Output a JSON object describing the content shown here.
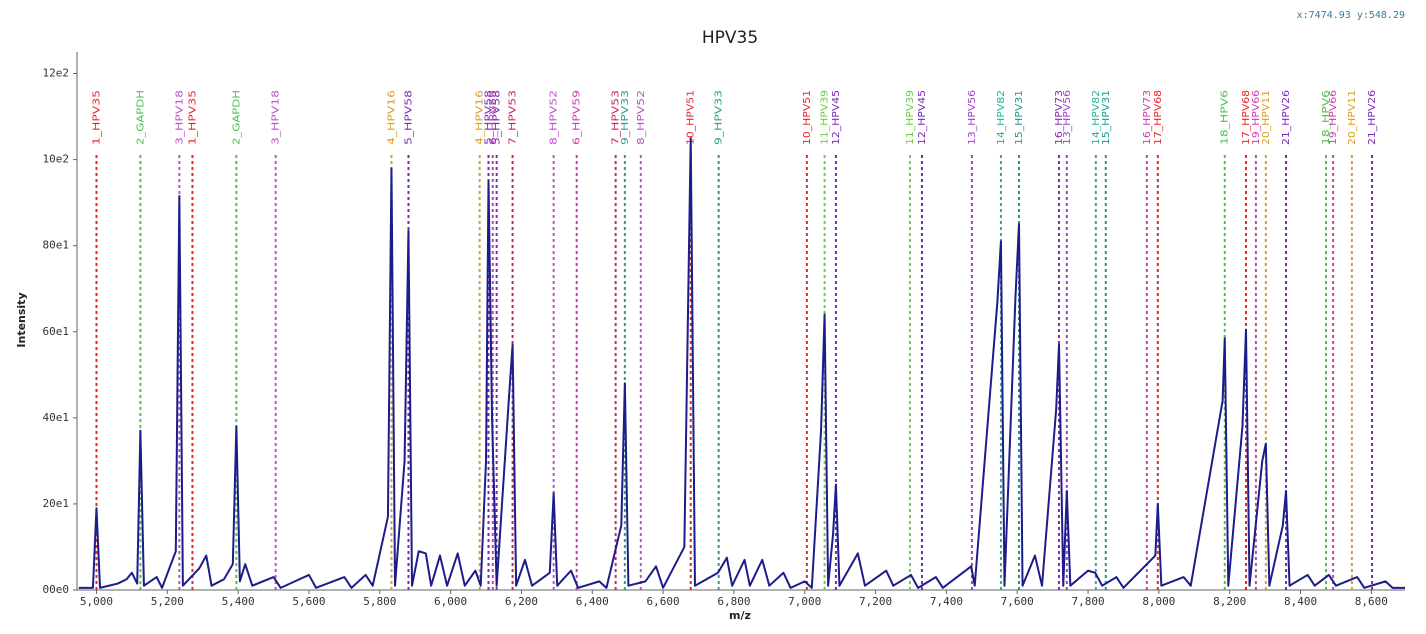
{
  "chart_data": {
    "type": "line",
    "title": "HPV35",
    "coordinates": "x:7474.93 y:548.29",
    "x_label": "m/z",
    "y_label": "Intensity",
    "xlim": [
      4945,
      8695
    ],
    "ylim": [
      0,
      1250
    ],
    "xticks": [
      {
        "value": 5000,
        "label": "5,000"
      },
      {
        "value": 5200,
        "label": "5,200"
      },
      {
        "value": 5400,
        "label": "5,400"
      },
      {
        "value": 5600,
        "label": "5,600"
      },
      {
        "value": 5800,
        "label": "5,800"
      },
      {
        "value": 6000,
        "label": "6,000"
      },
      {
        "value": 6200,
        "label": "6,200"
      },
      {
        "value": 6400,
        "label": "6,400"
      },
      {
        "value": 6600,
        "label": "6,600"
      },
      {
        "value": 6800,
        "label": "6,800"
      },
      {
        "value": 7000,
        "label": "7,000"
      },
      {
        "value": 7200,
        "label": "7,200"
      },
      {
        "value": 7400,
        "label": "7,400"
      },
      {
        "value": 7600,
        "label": "7,600"
      },
      {
        "value": 7800,
        "label": "7,800"
      },
      {
        "value": 8000,
        "label": "8,000"
      },
      {
        "value": 8200,
        "label": "8,200"
      },
      {
        "value": 8400,
        "label": "8,400"
      },
      {
        "value": 8600,
        "label": "8,600"
      }
    ],
    "yticks": [
      {
        "value": 0,
        "label": "00e0"
      },
      {
        "value": 200,
        "label": "20e1"
      },
      {
        "value": 400,
        "label": "40e1"
      },
      {
        "value": 600,
        "label": "60e1"
      },
      {
        "value": 800,
        "label": "80e1"
      },
      {
        "value": 1000,
        "label": "10e2"
      },
      {
        "value": 1200,
        "label": "12e2"
      }
    ],
    "series": [
      {
        "name": "spectrum",
        "color": "#1c1c8a",
        "x": [
          4950,
          4990,
          5000,
          5010,
          5060,
          5085,
          5100,
          5115,
          5124,
          5134,
          5170,
          5185,
          5224,
          5234,
          5244,
          5290,
          5310,
          5325,
          5360,
          5385,
          5395,
          5405,
          5420,
          5440,
          5500,
          5520,
          5560,
          5600,
          5620,
          5700,
          5720,
          5760,
          5780,
          5823,
          5833,
          5843,
          5870,
          5881,
          5891,
          5910,
          5930,
          5945,
          5970,
          5990,
          6020,
          6040,
          6070,
          6085,
          6100,
          6107,
          6117,
          6130,
          6165,
          6175,
          6185,
          6210,
          6230,
          6280,
          6291,
          6301,
          6340,
          6360,
          6420,
          6440,
          6482,
          6492,
          6502,
          6550,
          6580,
          6600,
          6660,
          6678,
          6690,
          6755,
          6780,
          6795,
          6830,
          6845,
          6880,
          6900,
          6940,
          6960,
          7000,
          7020,
          7046,
          7056,
          7066,
          7080,
          7088,
          7098,
          7150,
          7170,
          7230,
          7250,
          7300,
          7320,
          7370,
          7390,
          7470,
          7480,
          7544,
          7554,
          7564,
          7595,
          7605,
          7615,
          7650,
          7670,
          7710,
          7718,
          7730,
          7740,
          7750,
          7800,
          7820,
          7840,
          7880,
          7900,
          7990,
          7997,
          8007,
          8070,
          8090,
          8180,
          8186,
          8196,
          8236,
          8246,
          8256,
          8292,
          8302,
          8312,
          8350,
          8359,
          8369,
          8420,
          8440,
          8480,
          8500,
          8560,
          8580,
          8640,
          8660,
          8695
        ],
        "values": [
          5,
          5,
          190,
          5,
          15,
          25,
          40,
          15,
          370,
          10,
          30,
          5,
          90,
          915,
          10,
          50,
          80,
          10,
          25,
          60,
          380,
          20,
          60,
          10,
          30,
          5,
          20,
          35,
          5,
          30,
          5,
          35,
          10,
          170,
          980,
          10,
          300,
          835,
          10,
          90,
          85,
          10,
          80,
          10,
          85,
          10,
          45,
          10,
          300,
          950,
          400,
          10,
          450,
          570,
          10,
          70,
          10,
          40,
          225,
          10,
          45,
          5,
          20,
          5,
          150,
          480,
          10,
          20,
          55,
          5,
          100,
          1050,
          10,
          40,
          75,
          10,
          70,
          10,
          70,
          10,
          40,
          5,
          20,
          5,
          370,
          640,
          10,
          130,
          245,
          10,
          85,
          10,
          45,
          10,
          35,
          5,
          30,
          5,
          55,
          10,
          670,
          810,
          10,
          680,
          850,
          10,
          80,
          10,
          420,
          570,
          10,
          230,
          10,
          45,
          40,
          10,
          30,
          5,
          80,
          200,
          10,
          30,
          10,
          440,
          585,
          10,
          380,
          605,
          10,
          300,
          340,
          10,
          150,
          230,
          10,
          35,
          10,
          35,
          10,
          30,
          5,
          20,
          5,
          5
        ]
      }
    ],
    "markers": [
      {
        "label": "1_HPV35",
        "x": 5000,
        "color": "#e8262a"
      },
      {
        "label": "2_GAPDH",
        "x": 5124,
        "color": "#4cc24c"
      },
      {
        "label": "3_HPV18",
        "x": 5234,
        "color": "#c050d0"
      },
      {
        "label": "1_HPV35",
        "x": 5271,
        "color": "#e8262a"
      },
      {
        "label": "2_GAPDH",
        "x": 5395,
        "color": "#4cc24c"
      },
      {
        "label": "3_HPV18",
        "x": 5506,
        "color": "#c050d0"
      },
      {
        "label": "4_HPV16",
        "x": 5833,
        "color": "#d8a020"
      },
      {
        "label": "5_HPV58",
        "x": 5881,
        "color": "#7a2ab8"
      },
      {
        "label": "4_HPV16",
        "x": 6082,
        "color": "#d8a020"
      },
      {
        "label": "5_HPV58",
        "x": 6107,
        "color": "#7a2ab8"
      },
      {
        "label": "6_HPV59",
        "x": 6119,
        "color": "#d03ab0"
      },
      {
        "label": "5_HPV58",
        "x": 6130,
        "color": "#7a2ab8"
      },
      {
        "label": "7_HPV53",
        "x": 6175,
        "color": "#c8285a"
      },
      {
        "label": "8_HPV52",
        "x": 6291,
        "color": "#c050d0"
      },
      {
        "label": "6_HPV59",
        "x": 6356,
        "color": "#d03ab0"
      },
      {
        "label": "7_HPV53",
        "x": 6466,
        "color": "#c8285a"
      },
      {
        "label": "9_HPV33",
        "x": 6492,
        "color": "#2aa08a"
      },
      {
        "label": "8_HPV52",
        "x": 6537,
        "color": "#c050d0"
      },
      {
        "label": "10_HPV51",
        "x": 6678,
        "color": "#e8262a"
      },
      {
        "label": "9_HPV33",
        "x": 6757,
        "color": "#2aa08a"
      },
      {
        "label": "10_HPV51",
        "x": 7006,
        "color": "#e8262a"
      },
      {
        "label": "11_HPV39",
        "x": 7056,
        "color": "#6ccc4c"
      },
      {
        "label": "12_HPV45",
        "x": 7088,
        "color": "#7a2ab8"
      },
      {
        "label": "11_HPV39",
        "x": 7297,
        "color": "#6ccc4c"
      },
      {
        "label": "12_HPV45",
        "x": 7331,
        "color": "#7a2ab8"
      },
      {
        "label": "13_HPV56",
        "x": 7472,
        "color": "#a040c8"
      },
      {
        "label": "14_HPV82",
        "x": 7554,
        "color": "#2ab09a"
      },
      {
        "label": "15_HPV31",
        "x": 7605,
        "color": "#1a9a8a"
      },
      {
        "label": "16_HPV73",
        "x": 7718,
        "color": "#8a2ab0"
      },
      {
        "label": "13_HPV56",
        "x": 7740,
        "color": "#a040c8"
      },
      {
        "label": "14_HPV82",
        "x": 7822,
        "color": "#2ab09a"
      },
      {
        "label": "15_HPV31",
        "x": 7850,
        "color": "#1a9a8a"
      },
      {
        "label": "16_HPV73",
        "x": 7966,
        "color": "#d03ab0"
      },
      {
        "label": "17_HPV68",
        "x": 7997,
        "color": "#e8262a"
      },
      {
        "label": "18_HPV6",
        "x": 8186,
        "color": "#4cc24c"
      },
      {
        "label": "17_HPV68",
        "x": 8246,
        "color": "#e8262a"
      },
      {
        "label": "19_HPV66",
        "x": 8274,
        "color": "#d03ab0"
      },
      {
        "label": "20_HPV11",
        "x": 8302,
        "color": "#d8a020"
      },
      {
        "label": "21_HPV26",
        "x": 8359,
        "color": "#7a2ab8"
      },
      {
        "label": "18_HPV6",
        "x": 8472,
        "color": "#4cc24c"
      },
      {
        "label": "19_HPV66",
        "x": 8492,
        "color": "#d03ab0"
      },
      {
        "label": "20_HPV11",
        "x": 8545,
        "color": "#d8a020"
      },
      {
        "label": "21_HPV26",
        "x": 8602,
        "color": "#7a2ab8"
      }
    ]
  }
}
